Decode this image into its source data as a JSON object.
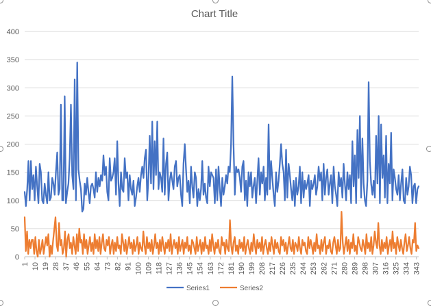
{
  "chart_data": {
    "type": "line",
    "title": "Chart Title",
    "xlabel": "",
    "ylabel": "",
    "ylim": [
      0,
      400
    ],
    "yticks": [
      0,
      50,
      100,
      150,
      200,
      250,
      300,
      350,
      400
    ],
    "xtick_labels": [
      "1",
      "10",
      "19",
      "28",
      "37",
      "46",
      "55",
      "64",
      "73",
      "82",
      "91",
      "100",
      "109",
      "118",
      "127",
      "136",
      "145",
      "154",
      "163",
      "172",
      "181",
      "190",
      "199",
      "208",
      "217",
      "226",
      "235",
      "244",
      "253",
      "262",
      "271",
      "280",
      "289",
      "298",
      "307",
      "316",
      "325",
      "334",
      "343"
    ],
    "x_range": [
      1,
      345
    ],
    "grid": "horizontal",
    "legend_position": "bottom",
    "series": [
      {
        "name": "Series1",
        "color": "#4472C4",
        "values": [
          115,
          90,
          120,
          170,
          100,
          170,
          120,
          145,
          100,
          160,
          125,
          95,
          165,
          150,
          100,
          95,
          130,
          110,
          95,
          150,
          100,
          105,
          140,
          130,
          110,
          150,
          185,
          110,
          120,
          270,
          100,
          100,
          285,
          95,
          115,
          130,
          175,
          270,
          145,
          120,
          315,
          100,
          345,
          155,
          135,
          120,
          80,
          85,
          130,
          110,
          140,
          115,
          95,
          125,
          130,
          120,
          105,
          150,
          115,
          140,
          125,
          145,
          135,
          180,
          145,
          160,
          115,
          100,
          175,
          135,
          140,
          150,
          175,
          110,
          205,
          130,
          90,
          150,
          120,
          115,
          175,
          140,
          150,
          100,
          145,
          120,
          110,
          135,
          90,
          105,
          125,
          140,
          115,
          145,
          160,
          140,
          175,
          190,
          100,
          140,
          215,
          130,
          240,
          120,
          205,
          145,
          240,
          120,
          150,
          140,
          115,
          210,
          110,
          165,
          185,
          100,
          135,
          150,
          135,
          120,
          160,
          170,
          125,
          140,
          145,
          110,
          90,
          165,
          200,
          155,
          115,
          135,
          95,
          160,
          125,
          105,
          150,
          140,
          90,
          120,
          100,
          120,
          170,
          110,
          130,
          105,
          95,
          160,
          125,
          150,
          145,
          140,
          95,
          155,
          100,
          160,
          120,
          90,
          140,
          110,
          125,
          145,
          130,
          160,
          150,
          200,
          320,
          200,
          110,
          160,
          150,
          155,
          140,
          115,
          160,
          170,
          100,
          135,
          90,
          150,
          125,
          150,
          105,
          125,
          140,
          95,
          135,
          175,
          110,
          150,
          130,
          160,
          100,
          140,
          110,
          235,
          120,
          170,
          140,
          110,
          90,
          150,
          115,
          135,
          165,
          200,
          165,
          150,
          100,
          190,
          105,
          165,
          145,
          120,
          100,
          135,
          90,
          140,
          110,
          125,
          160,
          95,
          150,
          105,
          135,
          120,
          130,
          145,
          90,
          135,
          120,
          130,
          145,
          110,
          125,
          160,
          135,
          150,
          100,
          165,
          110,
          140,
          155,
          110,
          130,
          145,
          95,
          160,
          125,
          110,
          90,
          150,
          125,
          140,
          105,
          165,
          130,
          100,
          150,
          120,
          145,
          95,
          205,
          125,
          180,
          95,
          225,
          140,
          250,
          105,
          210,
          130,
          100,
          90,
          135,
          310,
          170,
          130,
          110,
          135,
          105,
          215,
          130,
          250,
          95,
          235,
          140,
          180,
          105,
          215,
          95,
          165,
          130,
          220,
          100,
          155,
          140,
          120,
          110,
          145,
          100,
          130,
          155,
          100,
          95,
          140,
          110,
          125,
          160,
          145,
          95,
          125,
          130,
          95,
          120,
          125
        ]
      },
      {
        "name": "Series2",
        "color": "#ED7D31",
        "values": [
          70,
          10,
          45,
          5,
          30,
          15,
          30,
          30,
          5,
          35,
          10,
          0,
          30,
          5,
          15,
          30,
          5,
          20,
          35,
          20,
          40,
          0,
          20,
          5,
          30,
          50,
          70,
          20,
          10,
          60,
          20,
          30,
          5,
          15,
          45,
          0,
          30,
          40,
          15,
          25,
          5,
          35,
          20,
          5,
          40,
          10,
          50,
          25,
          30,
          5,
          40,
          15,
          30,
          5,
          20,
          35,
          10,
          25,
          5,
          40,
          15,
          30,
          10,
          35,
          5,
          25,
          40,
          15,
          10,
          30,
          20,
          35,
          5,
          20,
          30,
          5,
          25,
          10,
          35,
          15,
          20,
          5,
          40,
          25,
          10,
          30,
          5,
          20,
          35,
          15,
          25,
          5,
          30,
          10,
          20,
          35,
          5,
          25,
          15,
          10,
          45,
          20,
          5,
          35,
          15,
          25,
          10,
          30,
          5,
          20,
          40,
          15,
          25,
          5,
          30,
          10,
          35,
          20,
          5,
          25,
          15,
          30,
          10,
          40,
          5,
          20,
          30,
          15,
          25,
          5,
          35,
          10,
          20,
          30,
          5,
          25,
          15,
          35,
          10,
          20,
          5,
          30,
          25,
          15,
          5,
          35,
          10,
          20,
          30,
          5,
          25,
          10,
          35,
          15,
          20,
          5,
          30,
          10,
          40,
          20,
          5,
          25,
          15,
          30,
          10,
          5,
          35,
          20,
          25,
          5,
          30,
          15,
          10,
          65,
          20,
          5,
          25,
          35,
          10,
          20,
          5,
          30,
          15,
          25,
          10,
          35,
          5,
          20,
          30,
          15,
          5,
          25,
          10,
          40,
          20,
          5,
          30,
          15,
          25,
          10,
          35,
          5,
          20,
          30,
          15,
          5,
          25,
          10,
          35,
          20,
          5,
          30,
          15,
          25,
          10,
          5,
          35,
          20,
          30,
          10,
          25,
          5,
          20,
          35,
          15,
          10,
          30,
          5,
          25,
          20,
          10,
          35,
          15,
          5,
          30,
          20,
          25,
          10,
          5,
          35,
          15,
          30,
          20,
          5,
          25,
          10,
          40,
          15,
          20,
          5,
          30,
          10,
          25,
          35,
          5,
          20,
          15,
          30,
          10,
          5,
          25,
          35,
          20,
          5,
          30,
          10,
          15,
          80,
          25,
          5,
          20,
          35,
          10,
          30,
          5,
          25,
          15,
          40,
          10,
          20,
          5,
          35,
          25,
          15,
          10,
          30,
          20,
          5,
          40,
          15,
          25,
          10,
          35,
          5,
          20,
          45,
          25,
          15,
          60,
          20,
          5,
          30,
          10,
          25,
          15,
          35,
          5,
          20,
          30,
          10,
          45,
          15,
          25,
          5,
          35,
          20,
          10,
          30,
          15,
          5,
          25,
          40,
          10,
          20,
          35,
          15,
          5,
          30,
          25,
          60,
          10,
          20,
          15
        ]
      }
    ]
  }
}
